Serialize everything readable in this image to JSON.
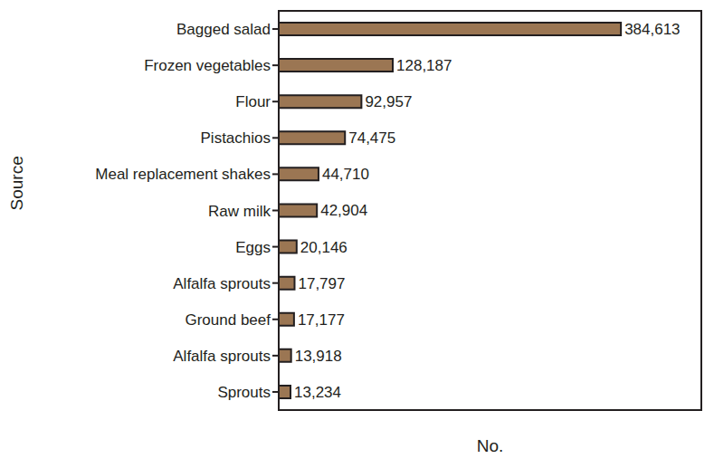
{
  "chart_data": {
    "type": "bar",
    "orientation": "horizontal",
    "x_label": "No.",
    "y_label": "Source",
    "categories": [
      "Bagged salad",
      "Frozen vegetables",
      "Flour",
      "Pistachios",
      "Meal replacement shakes",
      "Raw milk",
      "Eggs",
      "Alfalfa sprouts",
      "Ground beef",
      "Alfalfa sprouts",
      "Sprouts"
    ],
    "values": [
      384613,
      128187,
      92957,
      74475,
      44710,
      42904,
      20146,
      17797,
      17177,
      13918,
      13234
    ],
    "value_labels": [
      "384,613",
      "128,187",
      "92,957",
      "74,475",
      "44,710",
      "42,904",
      "20,146",
      "17,797",
      "17,177",
      "13,918",
      "13,234"
    ],
    "color": "#9b7653",
    "xlim": [
      0,
      475000
    ],
    "data_labels": true,
    "tick_labels": "y",
    "grid": false
  }
}
